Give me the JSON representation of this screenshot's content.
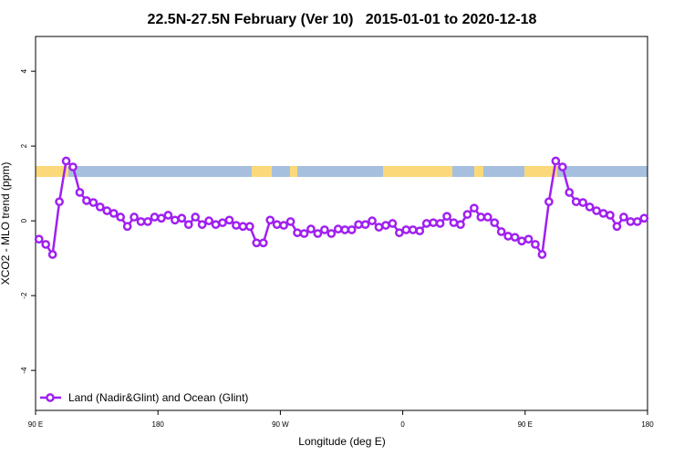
{
  "chart_data": {
    "type": "line",
    "title": "22.5N-27.5N February (Ver 10)   2015-01-01 to 2020-12-18",
    "x_label": "Longitude (deg E)",
    "y_label": "XCO2 - MLO trend (ppm)",
    "xlim": [
      90,
      540
    ],
    "xticks": [
      {
        "value": 90,
        "label": "90 E"
      },
      {
        "value": 180,
        "label": "180"
      },
      {
        "value": 270,
        "label": "90 W"
      },
      {
        "value": 360,
        "label": "0"
      },
      {
        "value": 450,
        "label": "90 E"
      },
      {
        "value": 540,
        "label": "180"
      }
    ],
    "ylim": [
      -5.07,
      4.93
    ],
    "yticks": [
      -4,
      -2,
      0,
      2,
      4
    ],
    "legend": "bottom-left",
    "x": [
      92.5,
      97.5,
      102.5,
      107.5,
      112.5,
      117.5,
      122.5,
      127.5,
      132.5,
      137.5,
      142.5,
      147.5,
      152.5,
      157.5,
      162.5,
      167.5,
      172.5,
      177.5,
      182.5,
      187.5,
      192.5,
      197.5,
      202.5,
      207.5,
      212.5,
      217.5,
      222.5,
      227.5,
      232.5,
      237.5,
      242.5,
      247.5,
      252.5,
      257.5,
      262.5,
      267.5,
      272.5,
      277.5,
      282.5,
      287.5,
      292.5,
      297.5,
      302.5,
      307.5,
      312.5,
      317.5,
      322.5,
      327.5,
      332.5,
      337.5,
      342.5,
      347.5,
      352.5,
      357.5,
      362.5,
      367.5,
      372.5,
      377.5,
      382.5,
      387.5,
      392.5,
      397.5,
      402.5,
      407.5,
      412.5,
      417.5,
      422.5,
      427.5,
      432.5,
      437.5,
      442.5,
      447.5,
      452.5,
      457.5,
      462.5,
      467.5,
      472.5,
      477.5,
      482.5,
      487.5,
      492.5,
      497.5,
      502.5,
      507.5,
      512.5,
      517.5,
      522.5,
      527.5,
      532.5,
      537.5
    ],
    "series": [
      {
        "name": "Land (Nadir&Glint) and Ocean (Glint)",
        "color": "#a020f0",
        "values": [
          -0.49,
          -0.63,
          -0.9,
          0.51,
          1.6,
          1.44,
          0.76,
          0.54,
          0.49,
          0.37,
          0.27,
          0.2,
          0.1,
          -0.15,
          0.1,
          -0.02,
          -0.02,
          0.1,
          0.07,
          0.15,
          0.02,
          0.07,
          -0.1,
          0.1,
          -0.1,
          0,
          -0.1,
          -0.05,
          0.02,
          -0.12,
          -0.15,
          -0.15,
          -0.59,
          -0.59,
          0.02,
          -0.1,
          -0.12,
          -0.02,
          -0.32,
          -0.34,
          -0.22,
          -0.34,
          -0.24,
          -0.34,
          -0.22,
          -0.24,
          -0.24,
          -0.1,
          -0.1,
          0,
          -0.17,
          -0.12,
          -0.07,
          -0.32,
          -0.24,
          -0.24,
          -0.27,
          -0.07,
          -0.05,
          -0.07,
          0.12,
          -0.05,
          -0.1,
          0.17,
          0.34,
          0.1,
          0.1,
          -0.05,
          -0.29,
          -0.41,
          -0.44,
          -0.54,
          -0.49,
          -0.63,
          -0.9,
          0.51,
          1.6,
          1.44,
          0.76,
          0.51,
          0.49,
          0.37,
          0.27,
          0.2,
          0.15,
          -0.15,
          0.1,
          -0.02,
          -0.02,
          0.07
        ]
      }
    ]
  }
}
